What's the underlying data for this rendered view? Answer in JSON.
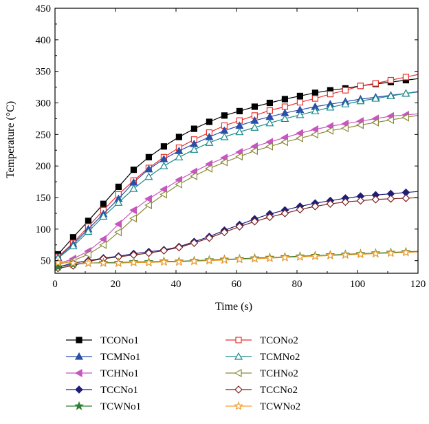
{
  "chart_data": {
    "type": "line",
    "title": "",
    "xlabel": "Time (s)",
    "ylabel": "Temperature (°C)",
    "xlim": [
      0,
      120
    ],
    "ylim": [
      30,
      450
    ],
    "xticks": [
      0,
      20,
      40,
      60,
      80,
      100,
      120
    ],
    "yticks": [
      50,
      100,
      150,
      200,
      250,
      300,
      350,
      400,
      450
    ],
    "grid": false,
    "legend_position": "bottom",
    "marker_times": [
      1,
      6,
      11,
      16,
      21,
      26,
      31,
      36,
      41,
      46,
      51,
      56,
      61,
      66,
      71,
      76,
      81,
      86,
      91,
      96,
      101,
      106,
      111,
      116
    ],
    "series": [
      {
        "name": "TCONo1",
        "color": "#000000",
        "marker": "square-filled",
        "values": [
          60,
          87,
          113,
          140,
          167,
          194,
          214,
          231,
          246,
          259,
          270,
          280,
          287,
          294,
          300,
          306,
          311,
          316,
          320,
          323,
          327,
          330,
          333,
          336
        ]
      },
      {
        "name": "TCONo2",
        "color": "#e8322d",
        "marker": "square-open",
        "values": [
          56,
          78,
          104,
          130,
          155,
          177,
          197,
          214,
          229,
          242,
          253,
          264,
          272,
          280,
          288,
          294,
          301,
          307,
          314,
          320,
          327,
          331,
          336,
          341
        ]
      },
      {
        "name": "TCMNo1",
        "color": "#2b4ea8",
        "marker": "triangle-filled",
        "values": [
          55,
          76,
          100,
          124,
          148,
          174,
          195,
          211,
          224,
          235,
          246,
          256,
          264,
          272,
          278,
          284,
          289,
          294,
          298,
          302,
          306,
          309,
          312,
          315
        ]
      },
      {
        "name": "TCMNo2",
        "color": "#1a8a8a",
        "marker": "triangle-open",
        "values": [
          54,
          73,
          96,
          120,
          142,
          164,
          183,
          200,
          214,
          226,
          237,
          246,
          254,
          261,
          268,
          275,
          281,
          287,
          293,
          298,
          303,
          307,
          311,
          315
        ]
      },
      {
        "name": "TCHNo1",
        "color": "#c855c0",
        "marker": "triangle-left-filled",
        "values": [
          45,
          53,
          65,
          84,
          108,
          130,
          148,
          163,
          178,
          191,
          203,
          213,
          222,
          231,
          238,
          245,
          252,
          258,
          263,
          267,
          271,
          275,
          279,
          281
        ]
      },
      {
        "name": "TCHNo2",
        "color": "#8a8a3c",
        "marker": "triangle-left-open",
        "values": [
          44,
          50,
          60,
          75,
          95,
          117,
          138,
          155,
          171,
          184,
          196,
          206,
          215,
          224,
          231,
          238,
          244,
          250,
          256,
          260,
          265,
          269,
          273,
          277
        ]
      },
      {
        "name": "TCCNo1",
        "color": "#1e1e78",
        "marker": "diamond-filled",
        "values": [
          40,
          46,
          50,
          54,
          57,
          61,
          64,
          67,
          72,
          80,
          88,
          98,
          107,
          116,
          124,
          130,
          136,
          141,
          145,
          149,
          152,
          154,
          156,
          158
        ]
      },
      {
        "name": "TCCNo2",
        "color": "#7a1f1f",
        "marker": "diamond-open",
        "values": [
          38,
          42,
          49,
          53,
          56,
          59,
          62,
          66,
          71,
          78,
          86,
          95,
          104,
          112,
          119,
          125,
          131,
          136,
          140,
          143,
          145,
          147,
          148,
          149
        ]
      },
      {
        "name": "TCWNo1",
        "color": "#2e7d32",
        "marker": "star-filled",
        "values": [
          40,
          44,
          46,
          47,
          47,
          48,
          48,
          49,
          49,
          50,
          51,
          52,
          53,
          54,
          55,
          56,
          57,
          58,
          59,
          60,
          61,
          62,
          63,
          64
        ]
      },
      {
        "name": "TCWNo2",
        "color": "#f39c2c",
        "marker": "star-open",
        "values": [
          47,
          46,
          46,
          46,
          46,
          47,
          47,
          48,
          48,
          49,
          50,
          51,
          52,
          53,
          54,
          55,
          56,
          57,
          58,
          59,
          60,
          61,
          62,
          63
        ]
      }
    ]
  }
}
